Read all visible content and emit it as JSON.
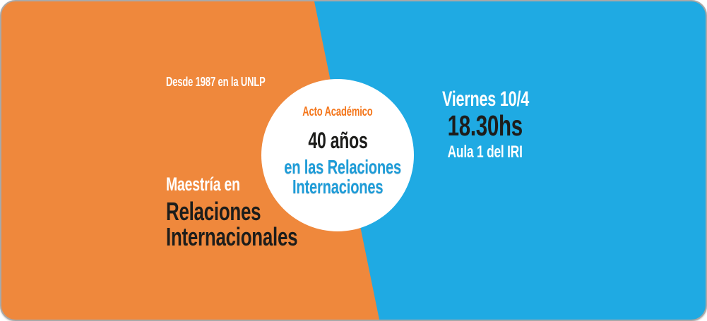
{
  "banner": {
    "left": {
      "tagline": "Desde 1987 en la UNLP",
      "program_prefix": "Maestría en",
      "program_line1": "Relaciones",
      "program_line2": "Internacionales"
    },
    "badge": {
      "kicker": "Acto Académico",
      "headline": "40 años",
      "subline1": "en las Relaciones",
      "subline2": "Internaciones"
    },
    "event": {
      "date": "Viernes 10/4",
      "time": "18.30hs",
      "venue": "Aula 1 del IRI"
    },
    "colors": {
      "orange_background": "#ef883c",
      "blue_background": "#1faae3",
      "kicker_orange": "#f4761b",
      "subline_blue": "#1d9cd8",
      "dark_text": "#1d1d1b",
      "light_text": "#ffffff",
      "edge_gray": "#a8a8a8"
    }
  }
}
